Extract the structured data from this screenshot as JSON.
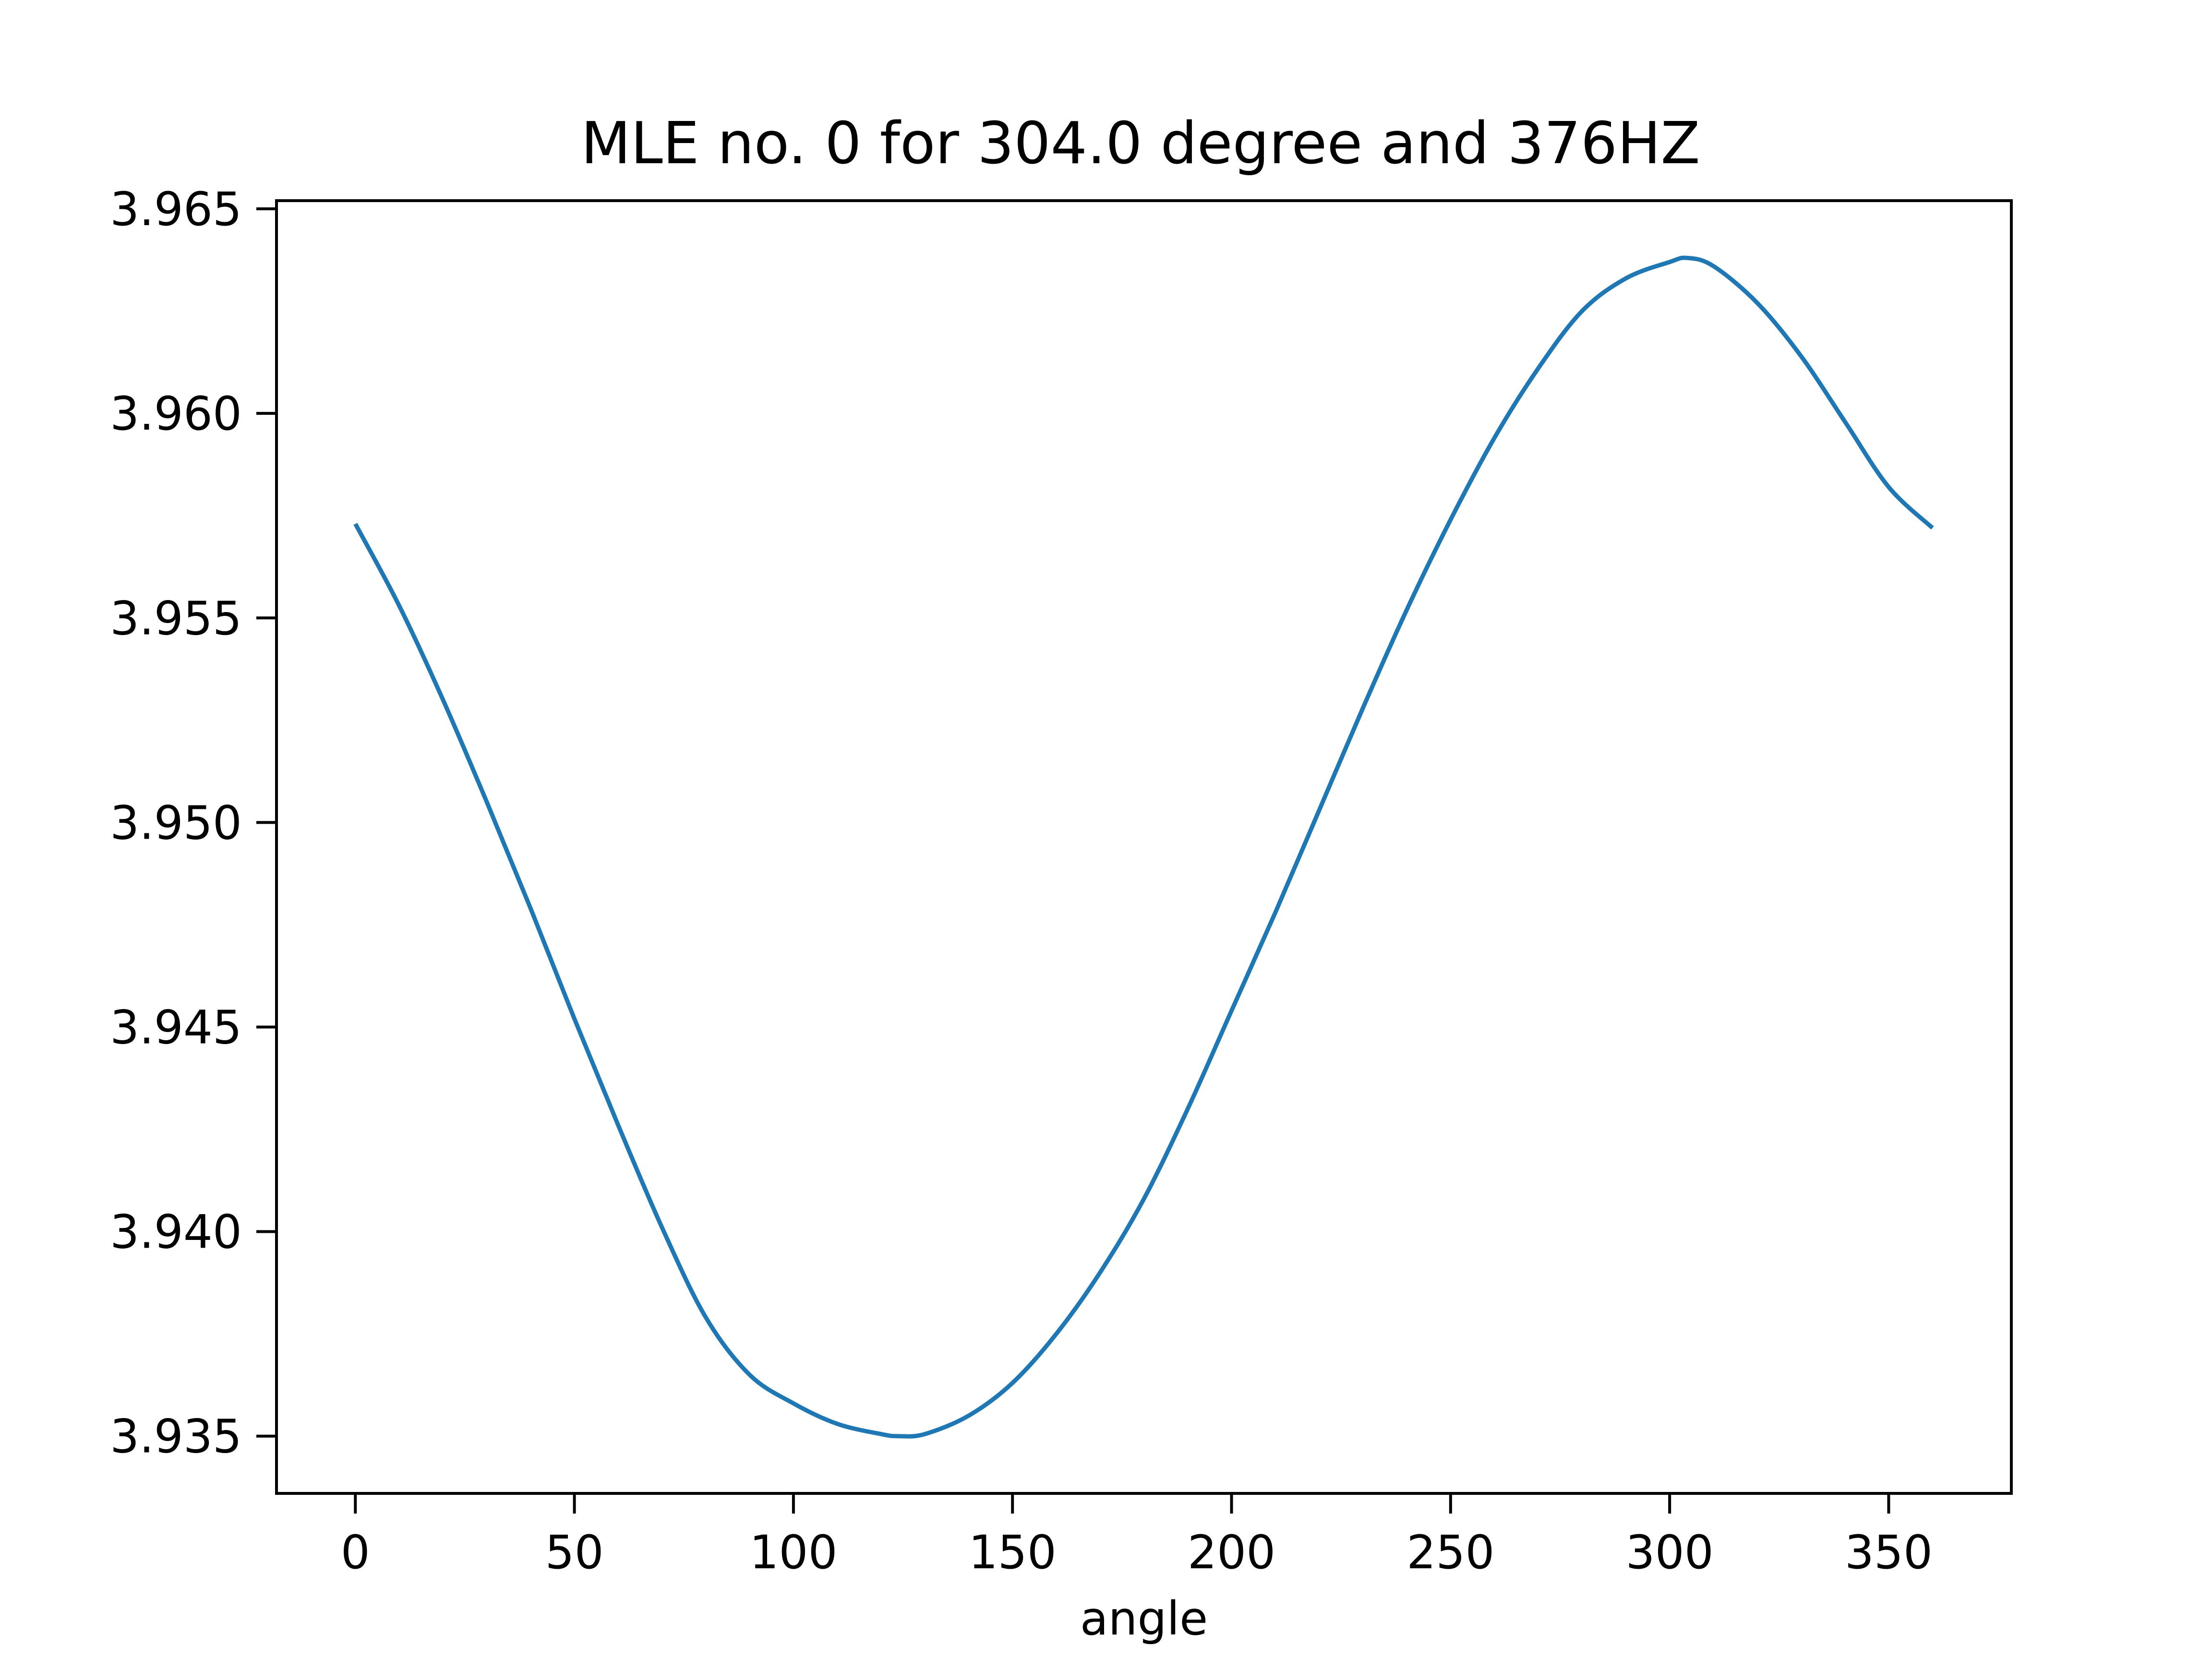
{
  "chart_data": {
    "type": "line",
    "title": "MLE no. 0 for 304.0 degree and 376HZ",
    "xlabel": "angle",
    "ylabel": "",
    "xlim": [
      -18,
      378
    ],
    "ylim": [
      3.9336,
      3.9652
    ],
    "xticks": [
      0,
      50,
      100,
      150,
      200,
      250,
      300,
      350
    ],
    "xtick_labels": [
      "0",
      "50",
      "100",
      "150",
      "200",
      "250",
      "300",
      "350"
    ],
    "yticks": [
      3.935,
      3.94,
      3.945,
      3.95,
      3.955,
      3.96,
      3.965
    ],
    "ytick_labels": [
      "3.935",
      "3.940",
      "3.945",
      "3.950",
      "3.955",
      "3.960",
      "3.965"
    ],
    "grid": false,
    "series": [
      {
        "color": "#1f77b4",
        "x": [
          0,
          10,
          20,
          30,
          40,
          50,
          60,
          70,
          80,
          90,
          100,
          110,
          120,
          124,
          130,
          140,
          150,
          160,
          170,
          180,
          190,
          200,
          210,
          220,
          230,
          240,
          250,
          260,
          270,
          280,
          290,
          300,
          304,
          310,
          320,
          330,
          340,
          350,
          360
        ],
        "y": [
          3.9573,
          3.9553,
          3.953,
          3.9505,
          3.9479,
          3.9452,
          3.9426,
          3.9401,
          3.9379,
          3.9365,
          3.9358,
          3.9353,
          3.93505,
          3.935,
          3.93505,
          3.9355,
          3.9363,
          3.9375,
          3.939,
          3.9408,
          3.943,
          3.9454,
          3.9478,
          3.9503,
          3.9528,
          3.9552,
          3.9574,
          3.9594,
          3.9611,
          3.9625,
          3.9633,
          3.9637,
          3.9638,
          3.9636,
          3.9627,
          3.9614,
          3.9598,
          3.9582,
          3.9572
        ]
      }
    ]
  }
}
